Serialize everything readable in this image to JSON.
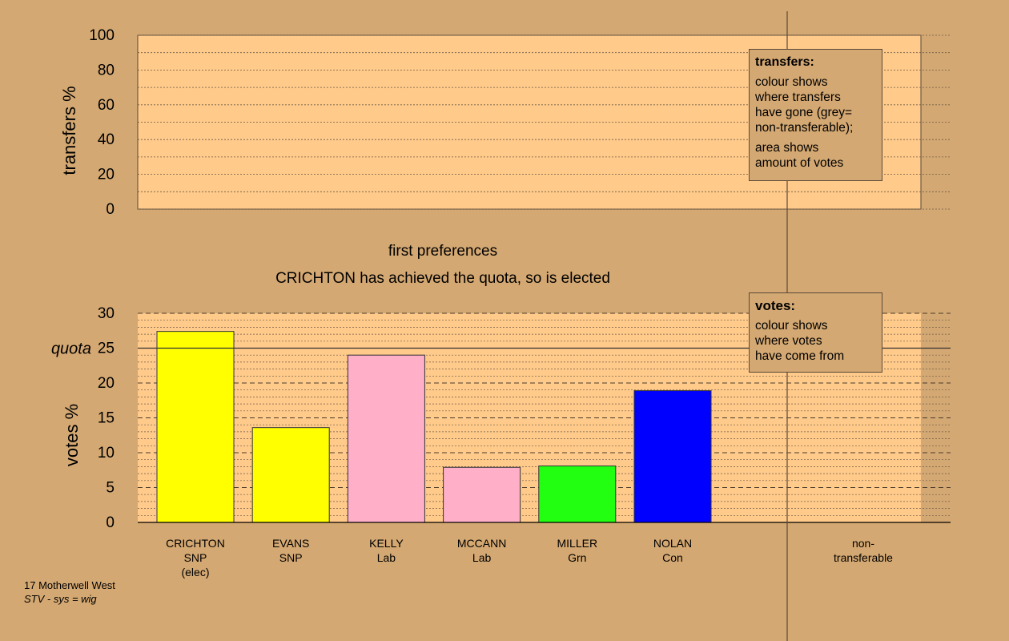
{
  "chart_data": [
    {
      "type": "bar",
      "name": "transfers-panel",
      "ylabel": "transfers %",
      "ylim": [
        0,
        100
      ],
      "yticks": [
        0,
        20,
        40,
        60,
        80,
        100
      ],
      "values": []
    },
    {
      "type": "bar",
      "name": "votes-panel",
      "title": "first preferences",
      "subtitle": "CRICHTON has achieved the quota, so is elected",
      "ylabel": "votes %",
      "ylim": [
        0,
        30
      ],
      "yticks": [
        0,
        5,
        10,
        15,
        20,
        25,
        30
      ],
      "quota": 25,
      "quota_label": "quota",
      "categories": [
        {
          "name": "CRICHTON",
          "party": "SNP",
          "note": "(elec)"
        },
        {
          "name": "EVANS",
          "party": "SNP",
          "note": ""
        },
        {
          "name": "KELLY",
          "party": "Lab",
          "note": ""
        },
        {
          "name": "MCCANN",
          "party": "Lab",
          "note": ""
        },
        {
          "name": "MILLER",
          "party": "Grn",
          "note": ""
        },
        {
          "name": "NOLAN",
          "party": "Con",
          "note": ""
        }
      ],
      "values": [
        27.4,
        13.6,
        24.0,
        7.9,
        8.1,
        18.9
      ],
      "colors": [
        "#FFFF00",
        "#FFFF00",
        "#FFB0C8",
        "#FFB0C8",
        "#22FF11",
        "#0000FF"
      ],
      "nontransferable_label": [
        "non-",
        "transferable"
      ]
    }
  ],
  "legend_transfers": {
    "title": "transfers:",
    "line1": "colour shows",
    "line2": "where transfers",
    "line3": "have gone (grey=",
    "line4": "non-transferable);",
    "line5": "area shows",
    "line6": "amount of votes"
  },
  "legend_votes": {
    "title": "votes:",
    "line1": "colour shows",
    "line2": "where votes",
    "line3": "have come from"
  },
  "footer": {
    "ward": "17 Motherwell West",
    "system": "STV - sys = wig"
  },
  "colors": {
    "background": "#D4A872",
    "plot_area": "#FFCA8A"
  }
}
